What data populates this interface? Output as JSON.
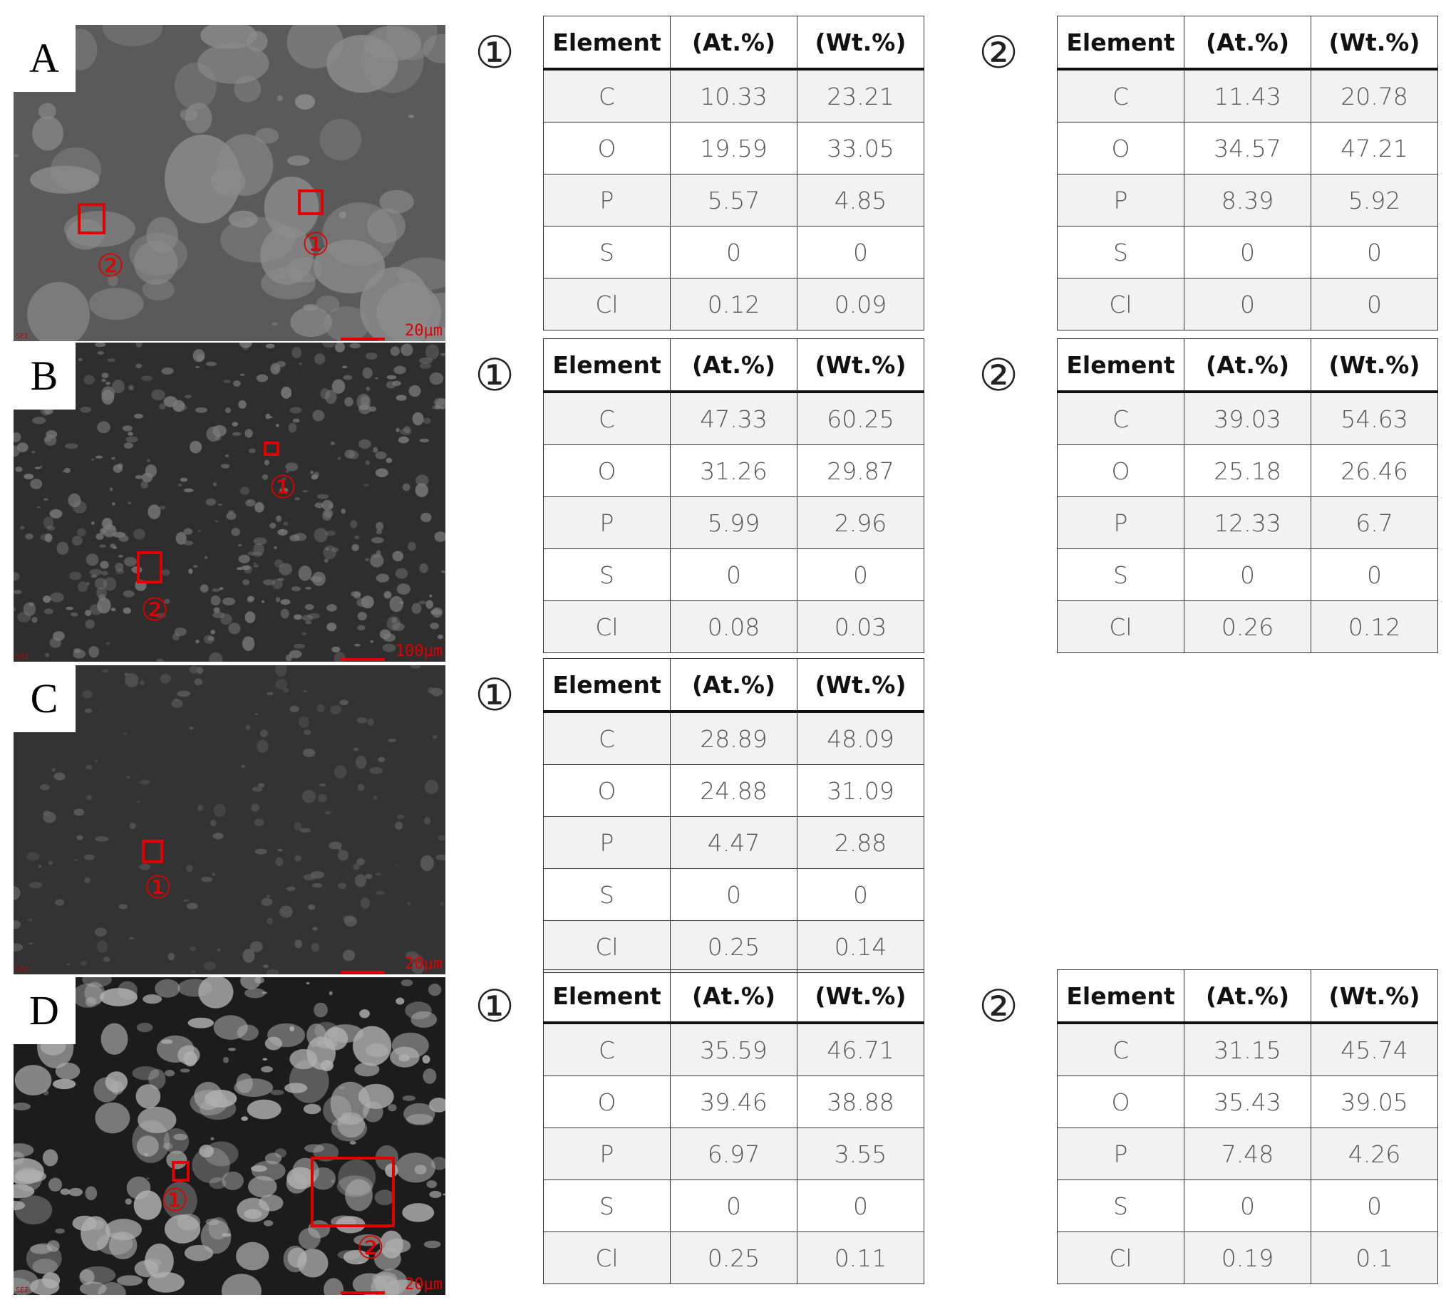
{
  "panels": [
    {
      "label": "A",
      "scale_bar": "20μm",
      "detector": "SEI",
      "regions": [
        {
          "marker": "②"
        },
        {
          "marker": "①"
        }
      ],
      "tables": [
        {
          "marker": "①",
          "header": [
            "Element",
            "(At.%)",
            "(Wt.%)"
          ],
          "rows": [
            [
              "C",
              "10.33",
              "23.21"
            ],
            [
              "O",
              "19.59",
              "33.05"
            ],
            [
              "P",
              "5.57",
              "4.85"
            ],
            [
              "S",
              "0",
              "0"
            ],
            [
              "Cl",
              "0.12",
              "0.09"
            ]
          ]
        },
        {
          "marker": "②",
          "header": [
            "Element",
            "(At.%)",
            "(Wt.%)"
          ],
          "rows": [
            [
              "C",
              "11.43",
              "20.78"
            ],
            [
              "O",
              "34.57",
              "47.21"
            ],
            [
              "P",
              "8.39",
              "5.92"
            ],
            [
              "S",
              "0",
              "0"
            ],
            [
              "Cl",
              "0",
              "0"
            ]
          ]
        }
      ]
    },
    {
      "label": "B",
      "scale_bar": "100μm",
      "detector": "SEI",
      "regions": [
        {
          "marker": "①"
        },
        {
          "marker": "②"
        }
      ],
      "tables": [
        {
          "marker": "①",
          "header": [
            "Element",
            "(At.%)",
            "(Wt.%)"
          ],
          "rows": [
            [
              "C",
              "47.33",
              "60.25"
            ],
            [
              "O",
              "31.26",
              "29.87"
            ],
            [
              "P",
              "5.99",
              "2.96"
            ],
            [
              "S",
              "0",
              "0"
            ],
            [
              "Cl",
              "0.08",
              "0.03"
            ]
          ]
        },
        {
          "marker": "②",
          "header": [
            "Element",
            "(At.%)",
            "(Wt.%)"
          ],
          "rows": [
            [
              "C",
              "39.03",
              "54.63"
            ],
            [
              "O",
              "25.18",
              "26.46"
            ],
            [
              "P",
              "12.33",
              "6.7"
            ],
            [
              "S",
              "0",
              "0"
            ],
            [
              "Cl",
              "0.26",
              "0.12"
            ]
          ]
        }
      ]
    },
    {
      "label": "C",
      "scale_bar": "20μm",
      "detector": "SEI",
      "regions": [
        {
          "marker": "①"
        }
      ],
      "tables": [
        {
          "marker": "①",
          "header": [
            "Element",
            "(At.%)",
            "(Wt.%)"
          ],
          "rows": [
            [
              "C",
              "28.89",
              "48.09"
            ],
            [
              "O",
              "24.88",
              "31.09"
            ],
            [
              "P",
              "4.47",
              "2.88"
            ],
            [
              "S",
              "0",
              "0"
            ],
            [
              "Cl",
              "0.25",
              "0.14"
            ]
          ]
        }
      ]
    },
    {
      "label": "D",
      "scale_bar": "20μm",
      "detector": "SEI",
      "regions": [
        {
          "marker": "①"
        },
        {
          "marker": "②"
        }
      ],
      "tables": [
        {
          "marker": "①",
          "header": [
            "Element",
            "(At.%)",
            "(Wt.%)"
          ],
          "rows": [
            [
              "C",
              "35.59",
              "46.71"
            ],
            [
              "O",
              "39.46",
              "38.88"
            ],
            [
              "P",
              "6.97",
              "3.55"
            ],
            [
              "S",
              "0",
              "0"
            ],
            [
              "Cl",
              "0.25",
              "0.11"
            ]
          ]
        },
        {
          "marker": "②",
          "header": [
            "Element",
            "(At.%)",
            "(Wt.%)"
          ],
          "rows": [
            [
              "C",
              "31.15",
              "45.74"
            ],
            [
              "O",
              "35.43",
              "39.05"
            ],
            [
              "P",
              "7.48",
              "4.26"
            ],
            [
              "S",
              "0",
              "0"
            ],
            [
              "Cl",
              "0.19",
              "0.1"
            ]
          ]
        }
      ]
    }
  ]
}
